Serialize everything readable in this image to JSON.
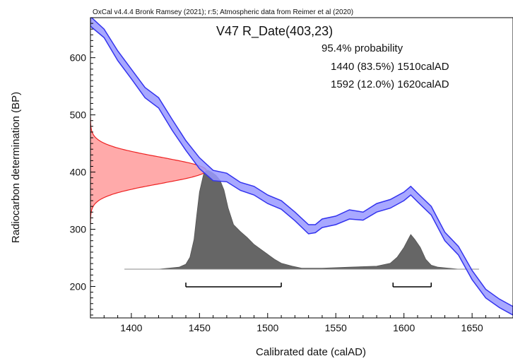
{
  "chart_data": {
    "type": "area",
    "header": "OxCal v4.4.4 Bronk Ramsey (2021); r:5; Atmospheric data from Reimer et al (2020)",
    "title": "V47 R_Date(403,23)",
    "probability_title": "95.4% probability",
    "ranges": [
      {
        "label": "1440 (83.5%) 1510calAD",
        "from": 1440,
        "to": 1510
      },
      {
        "label": "1592 (12.0%) 1620calAD",
        "from": 1592,
        "to": 1620
      }
    ],
    "xlabel": "Calibrated date (calAD)",
    "ylabel": "Radiocarbon determination (BP)",
    "xlim": [
      1370,
      1680
    ],
    "ylim": [
      145,
      670
    ],
    "x_ticks": [
      1400,
      1450,
      1500,
      1550,
      1600,
      1650
    ],
    "y_ticks": [
      200,
      300,
      400,
      500,
      600
    ],
    "colors": {
      "calibration": "#3333ee",
      "calibration_fill": "#9999ff",
      "radiocarbon": "#ee2222",
      "radiocarbon_fill": "#ffaaaa",
      "posterior": "#666666"
    },
    "radiocarbon_date": {
      "mean": 403,
      "sigma": 23
    },
    "calibration_curve": {
      "x": [
        1370,
        1380,
        1390,
        1400,
        1410,
        1420,
        1430,
        1440,
        1450,
        1460,
        1470,
        1480,
        1490,
        1500,
        1510,
        1520,
        1530,
        1535,
        1540,
        1550,
        1560,
        1570,
        1580,
        1590,
        1600,
        1605,
        1610,
        1620,
        1630,
        1640,
        1650,
        1660,
        1670,
        1680
      ],
      "upper": [
        672,
        650,
        612,
        580,
        548,
        530,
        492,
        455,
        425,
        403,
        398,
        382,
        375,
        360,
        350,
        330,
        308,
        308,
        318,
        323,
        334,
        330,
        345,
        352,
        365,
        375,
        363,
        340,
        295,
        270,
        228,
        195,
        178,
        165
      ],
      "lower": [
        655,
        635,
        595,
        563,
        530,
        512,
        473,
        438,
        406,
        385,
        383,
        368,
        360,
        345,
        335,
        315,
        292,
        294,
        303,
        308,
        318,
        316,
        330,
        337,
        350,
        360,
        348,
        325,
        280,
        255,
        212,
        180,
        163,
        150
      ]
    },
    "posterior": {
      "x": [
        1395,
        1420,
        1435,
        1440,
        1443,
        1446,
        1448,
        1450,
        1453,
        1456,
        1459,
        1462,
        1465,
        1468,
        1471,
        1475,
        1480,
        1485,
        1490,
        1495,
        1500,
        1505,
        1510,
        1518,
        1525,
        1540,
        1560,
        1580,
        1590,
        1595,
        1600,
        1603,
        1605,
        1608,
        1612,
        1616,
        1620,
        1625,
        1640,
        1655
      ],
      "density": [
        0,
        0,
        0.02,
        0.05,
        0.12,
        0.3,
        0.55,
        0.78,
        0.96,
        1.0,
        0.98,
        0.95,
        0.9,
        0.8,
        0.62,
        0.45,
        0.38,
        0.32,
        0.25,
        0.2,
        0.15,
        0.1,
        0.06,
        0.03,
        0.01,
        0.01,
        0.02,
        0.03,
        0.06,
        0.12,
        0.22,
        0.3,
        0.35,
        0.3,
        0.22,
        0.1,
        0.04,
        0.02,
        0,
        0
      ]
    }
  }
}
